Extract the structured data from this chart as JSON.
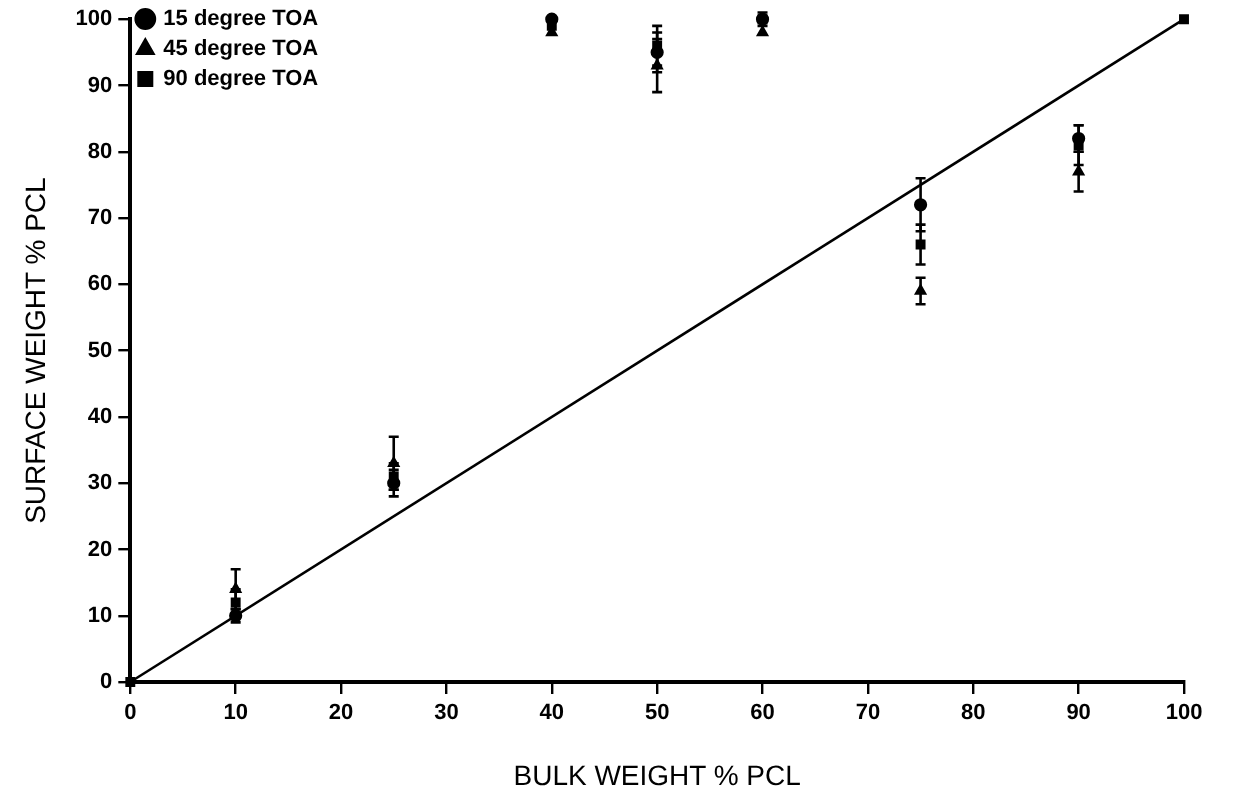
{
  "chart_data": {
    "type": "scatter",
    "xlabel": "BULK WEIGHT % PCL",
    "ylabel": "SURFACE WEIGHT % PCL",
    "xlim": [
      0,
      100
    ],
    "xticks": [
      0,
      10,
      20,
      30,
      40,
      50,
      60,
      70,
      80,
      90,
      100
    ],
    "ylim": [
      0,
      100
    ],
    "yticks": [
      0,
      10,
      20,
      30,
      40,
      50,
      60,
      70,
      80,
      90,
      100
    ],
    "grid": false,
    "legend": "top left",
    "series": [
      {
        "name": "15 degree TOA",
        "color": "#000000",
        "marker": "circle",
        "x": [
          10,
          25,
          40,
          50,
          60,
          75,
          90
        ],
        "values": [
          10,
          30,
          100,
          95,
          100,
          72,
          82
        ],
        "errors": [
          1,
          2,
          null,
          3,
          1,
          4,
          2
        ]
      },
      {
        "name": "45 degree TOA",
        "color": "#000000",
        "marker": "triangle",
        "x": [
          10,
          25,
          40,
          50,
          60,
          75,
          90
        ],
        "values": [
          14,
          33,
          98,
          93,
          98,
          59,
          77
        ],
        "errors": [
          3,
          4,
          null,
          4,
          null,
          2,
          3
        ]
      },
      {
        "name": "90 degree TOA",
        "color": "#000000",
        "marker": "square",
        "x": [
          0,
          10,
          25,
          40,
          50,
          60,
          75,
          90,
          100
        ],
        "values": [
          0,
          12,
          31,
          99,
          96,
          100,
          66,
          81,
          100
        ],
        "errors": [
          null,
          2,
          2,
          null,
          3,
          null,
          3,
          3,
          null
        ]
      },
      {
        "type": "line",
        "color": "#000000",
        "marker": "none",
        "x": [
          0,
          100
        ],
        "values": [
          0,
          100
        ]
      }
    ]
  }
}
